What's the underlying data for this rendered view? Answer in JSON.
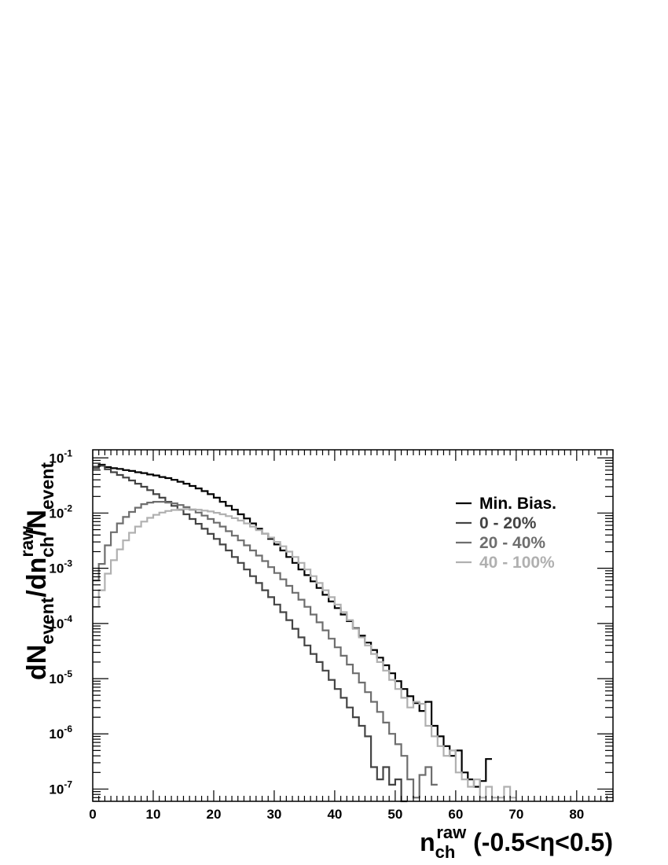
{
  "chart_data": {
    "type": "line",
    "y_scale": "log",
    "xlim": [
      0,
      86
    ],
    "ylim": [
      6e-08,
      0.14
    ],
    "x_ticks": [
      "0",
      "10",
      "20",
      "30",
      "40",
      "50",
      "60",
      "70",
      "80"
    ],
    "y_tick_labels": [
      {
        "base": "10",
        "exp": "-1"
      },
      {
        "base": "10",
        "exp": "-2"
      },
      {
        "base": "10",
        "exp": "-3"
      },
      {
        "base": "10",
        "exp": "-4"
      },
      {
        "base": "10",
        "exp": "-5"
      },
      {
        "base": "10",
        "exp": "-6"
      },
      {
        "base": "10",
        "exp": "-7"
      }
    ],
    "xlabel": {
      "main": "n",
      "sub": "ch",
      "sup": "raw",
      "rest": " (-0.5<η<0.5)"
    },
    "ylabel": {
      "p1": "dN",
      "s1": "event",
      "p2": "/dn",
      "sup2": "raw",
      "s2": "ch",
      "p3": "/N",
      "s3": "event"
    },
    "legend_position": "top-right",
    "grid": false,
    "series": [
      {
        "name": "Min. Bias.",
        "color": "#000000",
        "x": [
          0,
          1,
          2,
          3,
          4,
          5,
          6,
          7,
          8,
          9,
          10,
          11,
          12,
          13,
          14,
          15,
          16,
          17,
          18,
          19,
          20,
          21,
          22,
          23,
          24,
          25,
          26,
          27,
          28,
          29,
          30,
          31,
          32,
          33,
          34,
          35,
          36,
          37,
          38,
          39,
          40,
          41,
          42,
          43,
          44,
          45,
          46,
          47,
          48,
          49,
          50,
          51,
          52,
          53,
          54,
          55,
          56,
          57,
          58,
          59,
          60,
          61,
          62,
          63,
          64,
          65
        ],
        "values": [
          0.065,
          0.075,
          0.068,
          0.065,
          0.063,
          0.06,
          0.058,
          0.055,
          0.053,
          0.05,
          0.048,
          0.045,
          0.043,
          0.04,
          0.037,
          0.034,
          0.031,
          0.028,
          0.025,
          0.022,
          0.019,
          0.016,
          0.0135,
          0.0115,
          0.0095,
          0.008,
          0.0065,
          0.0052,
          0.0042,
          0.0034,
          0.0027,
          0.0021,
          0.0016,
          0.00125,
          0.00095,
          0.00075,
          0.00058,
          0.00044,
          0.00033,
          0.00025,
          0.00019,
          0.000145,
          0.00011,
          8.2e-05,
          6e-05,
          4.5e-05,
          3.3e-05,
          2.4e-05,
          1.75e-05,
          1.25e-05,
          9e-06,
          6.5e-06,
          4.8e-06,
          3.6e-06,
          2.6e-06,
          3.8e-06,
          1.4e-06,
          9e-07,
          6e-07,
          4e-07,
          5e-07,
          2e-07,
          1.5e-07,
          1.1e-07,
          1.4e-07,
          3.5e-07
        ]
      },
      {
        "name": "0 - 20%",
        "color": "#444444",
        "x": [
          0,
          1,
          2,
          3,
          4,
          5,
          6,
          7,
          8,
          9,
          10,
          11,
          12,
          13,
          14,
          15,
          16,
          17,
          18,
          19,
          20,
          21,
          22,
          23,
          24,
          25,
          26,
          27,
          28,
          29,
          30,
          31,
          32,
          33,
          34,
          35,
          36,
          37,
          38,
          39,
          40,
          41,
          42,
          43,
          44,
          45,
          46,
          47,
          48,
          49,
          50,
          51
        ],
        "values": [
          0.065,
          0.072,
          0.062,
          0.055,
          0.049,
          0.044,
          0.039,
          0.034,
          0.03,
          0.026,
          0.022,
          0.019,
          0.016,
          0.0135,
          0.0115,
          0.0095,
          0.0078,
          0.0064,
          0.0052,
          0.0042,
          0.0034,
          0.0027,
          0.0021,
          0.0016,
          0.00125,
          0.00095,
          0.00072,
          0.00054,
          0.0004,
          0.0003,
          0.00022,
          0.00016,
          0.000115,
          8e-05,
          5.6e-05,
          4e-05,
          2.8e-05,
          2e-05,
          1.4e-05,
          9.5e-06,
          6.5e-06,
          4.5e-06,
          3e-06,
          2e-06,
          1.4e-06,
          9e-07,
          2.5e-07,
          1.5e-07,
          2.5e-07,
          1.2e-07,
          1.5e-07,
          6e-08
        ]
      },
      {
        "name": "20 - 40%",
        "color": "#6e6e6e",
        "x": [
          0,
          1,
          2,
          3,
          4,
          5,
          6,
          7,
          8,
          9,
          10,
          11,
          12,
          13,
          14,
          15,
          16,
          17,
          18,
          19,
          20,
          21,
          22,
          23,
          24,
          25,
          26,
          27,
          28,
          29,
          30,
          31,
          32,
          33,
          34,
          35,
          36,
          37,
          38,
          39,
          40,
          41,
          42,
          43,
          44,
          45,
          46,
          47,
          48,
          49,
          50,
          51,
          52,
          53,
          54,
          55,
          56
        ],
        "values": [
          0.0006,
          0.0012,
          0.0026,
          0.0045,
          0.0065,
          0.0085,
          0.0105,
          0.0125,
          0.0145,
          0.0155,
          0.016,
          0.016,
          0.0155,
          0.015,
          0.014,
          0.0128,
          0.0115,
          0.0102,
          0.009,
          0.0078,
          0.0067,
          0.0057,
          0.0047,
          0.0039,
          0.0032,
          0.0026,
          0.0021,
          0.0017,
          0.00135,
          0.00105,
          0.00082,
          0.00063,
          0.00048,
          0.00036,
          0.00027,
          0.0002,
          0.000145,
          0.000105,
          7.5e-05,
          5.3e-05,
          3.7e-05,
          2.6e-05,
          1.8e-05,
          1.25e-05,
          8.5e-06,
          5.7e-06,
          3.8e-06,
          2.5e-06,
          1.6e-06,
          1e-06,
          6.5e-07,
          4e-07,
          1.5e-07,
          7e-08,
          1.8e-07,
          2.5e-07,
          1.2e-07
        ]
      },
      {
        "name": "40 - 100%",
        "color": "#b0b0b0",
        "x": [
          0,
          1,
          2,
          3,
          4,
          5,
          6,
          7,
          8,
          9,
          10,
          11,
          12,
          13,
          14,
          15,
          16,
          17,
          18,
          19,
          20,
          21,
          22,
          23,
          24,
          25,
          26,
          27,
          28,
          29,
          30,
          31,
          32,
          33,
          34,
          35,
          36,
          37,
          38,
          39,
          40,
          41,
          42,
          43,
          44,
          45,
          46,
          47,
          48,
          49,
          50,
          51,
          52,
          53,
          54,
          55,
          56,
          57,
          58,
          59,
          60,
          61,
          62,
          63,
          64,
          65,
          66,
          67,
          68,
          69
        ],
        "values": [
          0.0002,
          0.0004,
          0.0008,
          0.0014,
          0.0022,
          0.0032,
          0.0044,
          0.0057,
          0.007,
          0.0082,
          0.0093,
          0.0102,
          0.0109,
          0.0114,
          0.0117,
          0.0118,
          0.0117,
          0.0115,
          0.0111,
          0.0107,
          0.0101,
          0.0095,
          0.0088,
          0.0081,
          0.0073,
          0.0065,
          0.0057,
          0.0049,
          0.0042,
          0.0036,
          0.003,
          0.0025,
          0.002,
          0.0016,
          0.00125,
          0.00095,
          0.00072,
          0.00054,
          0.0004,
          0.0003,
          0.00022,
          0.00016,
          0.000115,
          8e-05,
          5.6e-05,
          4e-05,
          2.8e-05,
          2e-05,
          1.4e-05,
          9.5e-06,
          6.5e-06,
          4.5e-06,
          3e-06,
          3.8e-06,
          3.5e-06,
          1.4e-06,
          9e-07,
          6e-07,
          4e-07,
          5e-07,
          2e-07,
          1.5e-07,
          1.1e-07,
          1.5e-07,
          7e-08,
          1.1e-07,
          7e-08,
          7e-08,
          1.1e-07,
          7e-08
        ]
      }
    ]
  }
}
